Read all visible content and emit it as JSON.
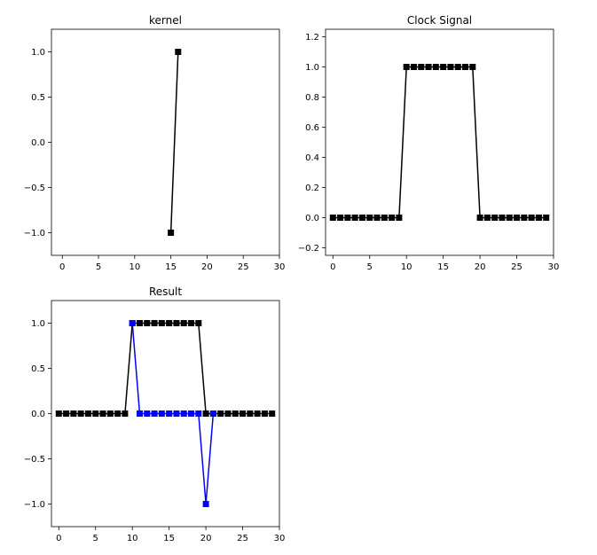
{
  "chart_data": [
    {
      "type": "line",
      "title": "kernel",
      "xlabel": "",
      "ylabel": "",
      "xlim": [
        -1.5,
        30
      ],
      "ylim": [
        -1.25,
        1.25
      ],
      "xticks": [
        0,
        5,
        10,
        15,
        20,
        25,
        30
      ],
      "xtick_labels": [
        "0",
        "5",
        "10",
        "15",
        "20",
        "25",
        "30"
      ],
      "yticks": [
        -1.0,
        -0.5,
        0.0,
        0.5,
        1.0
      ],
      "ytick_labels": [
        "−1.0",
        "−0.5",
        "0.0",
        "0.5",
        "1.0"
      ],
      "grid": false,
      "series": [
        {
          "color": "#000000",
          "marker": "square",
          "x": [
            15,
            16
          ],
          "y": [
            -1,
            1
          ]
        }
      ]
    },
    {
      "type": "line",
      "title": "Clock Signal",
      "xlabel": "",
      "ylabel": "",
      "xlim": [
        -1,
        30
      ],
      "ylim": [
        -0.25,
        1.25
      ],
      "xticks": [
        0,
        5,
        10,
        15,
        20,
        25,
        30
      ],
      "xtick_labels": [
        "0",
        "5",
        "10",
        "15",
        "20",
        "25",
        "30"
      ],
      "yticks": [
        -0.2,
        0.0,
        0.2,
        0.4,
        0.6,
        0.8,
        1.0,
        1.2
      ],
      "ytick_labels": [
        "−0.2",
        "0.0",
        "0.2",
        "0.4",
        "0.6",
        "0.8",
        "1.0",
        "1.2"
      ],
      "grid": false,
      "series": [
        {
          "color": "#000000",
          "marker": "square",
          "x": [
            0,
            1,
            2,
            3,
            4,
            5,
            6,
            7,
            8,
            9,
            10,
            11,
            12,
            13,
            14,
            15,
            16,
            17,
            18,
            19,
            20,
            21,
            22,
            23,
            24,
            25,
            26,
            27,
            28,
            29
          ],
          "y": [
            0,
            0,
            0,
            0,
            0,
            0,
            0,
            0,
            0,
            0,
            1,
            1,
            1,
            1,
            1,
            1,
            1,
            1,
            1,
            1,
            0,
            0,
            0,
            0,
            0,
            0,
            0,
            0,
            0,
            0
          ]
        }
      ]
    },
    {
      "type": "line",
      "title": "Result",
      "xlabel": "",
      "ylabel": "",
      "xlim": [
        -1,
        30
      ],
      "ylim": [
        -1.25,
        1.25
      ],
      "xticks": [
        0,
        5,
        10,
        15,
        20,
        25,
        30
      ],
      "xtick_labels": [
        "0",
        "5",
        "10",
        "15",
        "20",
        "25",
        "30"
      ],
      "yticks": [
        -1.0,
        -0.5,
        0.0,
        0.5,
        1.0
      ],
      "ytick_labels": [
        "−1.0",
        "−0.5",
        "0.0",
        "0.5",
        "1.0"
      ],
      "grid": false,
      "series": [
        {
          "color": "#000000",
          "marker": "square",
          "x": [
            0,
            1,
            2,
            3,
            4,
            5,
            6,
            7,
            8,
            9,
            10,
            11,
            12,
            13,
            14,
            15,
            16,
            17,
            18,
            19,
            20,
            21,
            22,
            23,
            24,
            25,
            26,
            27,
            28,
            29
          ],
          "y": [
            0,
            0,
            0,
            0,
            0,
            0,
            0,
            0,
            0,
            0,
            1,
            1,
            1,
            1,
            1,
            1,
            1,
            1,
            1,
            1,
            0,
            0,
            0,
            0,
            0,
            0,
            0,
            0,
            0,
            0
          ]
        },
        {
          "color": "#0000ff",
          "marker": "square",
          "x": [
            10,
            11,
            12,
            13,
            14,
            15,
            16,
            17,
            18,
            19,
            20,
            21
          ],
          "y": [
            1,
            0,
            0,
            0,
            0,
            0,
            0,
            0,
            0,
            0,
            -1,
            0
          ]
        }
      ]
    }
  ]
}
